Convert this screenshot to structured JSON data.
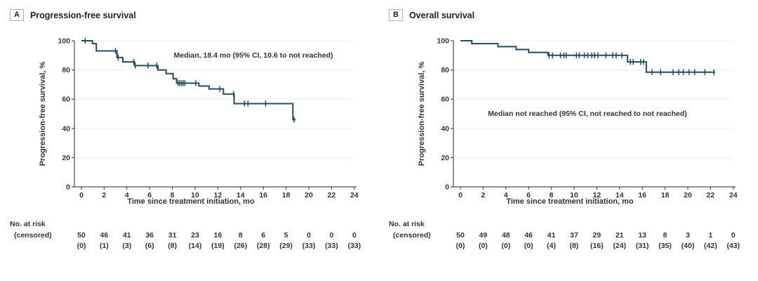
{
  "figure": {
    "background": "#ffffff",
    "curve_color": "#254B5E",
    "axis_color": "#4d4d4d",
    "grid_color": "#ebebeb",
    "panels": [
      {
        "label": "A",
        "title": "Progression-free survival",
        "chart_data": {
          "type": "line",
          "subtype": "kaplan_meier_step",
          "title": "Progression-free survival",
          "annotation": "Median, 18.4 mo (95% CI, 10.6 to not reached)",
          "xlabel": "Time since treatment initiation, mo",
          "ylabel": "Progression-free survival, %",
          "xlim": [
            0,
            24
          ],
          "ylim": [
            0,
            100
          ],
          "x_ticks": [
            0,
            2,
            4,
            6,
            8,
            10,
            12,
            14,
            16,
            18,
            20,
            22,
            24
          ],
          "y_ticks": [
            0,
            20,
            40,
            60,
            80,
            100
          ],
          "grid": "horizontal",
          "legend_position": "none",
          "steps": [
            [
              0,
              100
            ],
            [
              0.97,
              98
            ],
            [
              1.31,
              93
            ],
            [
              3.13,
              88.5
            ],
            [
              3.64,
              85.5
            ],
            [
              4.67,
              83
            ],
            [
              6.73,
              80
            ],
            [
              7.45,
              77.5
            ],
            [
              8.07,
              74
            ],
            [
              8.37,
              71
            ],
            [
              10.33,
              69
            ],
            [
              11.23,
              67
            ],
            [
              12.49,
              63.5
            ],
            [
              13.43,
              57
            ],
            [
              18.6,
              46
            ]
          ],
          "curve_end": 18.85,
          "censor_marks": [
            [
              0.33,
              100
            ],
            [
              3.0,
              93
            ],
            [
              3.23,
              88.5
            ],
            [
              4.6,
              85.5
            ],
            [
              4.73,
              83
            ],
            [
              5.86,
              83
            ],
            [
              6.62,
              83
            ],
            [
              8.5,
              71
            ],
            [
              8.65,
              71
            ],
            [
              8.8,
              71
            ],
            [
              8.95,
              71
            ],
            [
              9.1,
              71
            ],
            [
              10.06,
              71
            ],
            [
              12.16,
              67
            ],
            [
              13.38,
              63.5
            ],
            [
              14.34,
              57
            ],
            [
              14.65,
              57
            ],
            [
              16.2,
              57
            ],
            [
              18.7,
              46
            ]
          ],
          "at_risk_label": "No. at risk",
          "censored_label": "(censored)",
          "at_risk": [
            50,
            46,
            41,
            36,
            31,
            23,
            16,
            8,
            6,
            5,
            0,
            0,
            0
          ],
          "censored": [
            0,
            1,
            3,
            6,
            8,
            14,
            19,
            26,
            28,
            29,
            33,
            33,
            33
          ]
        }
      },
      {
        "label": "B",
        "title": "Overall survival",
        "chart_data": {
          "type": "line",
          "subtype": "kaplan_meier_step",
          "title": "Overall survival",
          "annotation": "Median not reached (95% CI, not reached to not reached)",
          "xlabel": "Time since treatment initiation, mo",
          "ylabel": "Progression-free survival, %",
          "xlim": [
            0,
            24
          ],
          "ylim": [
            0,
            100
          ],
          "x_ticks": [
            0,
            2,
            4,
            6,
            8,
            10,
            12,
            14,
            16,
            18,
            20,
            22,
            24
          ],
          "y_ticks": [
            0,
            20,
            40,
            60,
            80,
            100
          ],
          "grid": "horizontal",
          "legend_position": "none",
          "steps": [
            [
              0,
              100
            ],
            [
              1.0,
              98
            ],
            [
              3.3,
              96
            ],
            [
              4.9,
              94
            ],
            [
              6.0,
              92
            ],
            [
              7.7,
              90
            ],
            [
              14.7,
              85.5
            ],
            [
              16.35,
              78.5
            ]
          ],
          "curve_end": 22.4,
          "censor_marks": [
            [
              7.8,
              90
            ],
            [
              8.1,
              90
            ],
            [
              8.8,
              90
            ],
            [
              9.1,
              90
            ],
            [
              9.3,
              90
            ],
            [
              10.2,
              90
            ],
            [
              10.45,
              90
            ],
            [
              10.9,
              90
            ],
            [
              11.2,
              90
            ],
            [
              11.55,
              90
            ],
            [
              11.8,
              90
            ],
            [
              12.1,
              90
            ],
            [
              12.8,
              90
            ],
            [
              13.4,
              90
            ],
            [
              13.7,
              90
            ],
            [
              14.2,
              90
            ],
            [
              14.95,
              85.5
            ],
            [
              15.2,
              85.5
            ],
            [
              15.85,
              85.5
            ],
            [
              16.1,
              85.5
            ],
            [
              16.85,
              78.5
            ],
            [
              17.6,
              78.5
            ],
            [
              18.7,
              78.5
            ],
            [
              19.2,
              78.5
            ],
            [
              19.6,
              78.5
            ],
            [
              20.1,
              78.5
            ],
            [
              20.6,
              78.5
            ],
            [
              21.5,
              78.5
            ],
            [
              22.3,
              78.5
            ]
          ],
          "at_risk_label": "No. at risk",
          "censored_label": "(censored)",
          "at_risk": [
            50,
            49,
            48,
            46,
            41,
            37,
            29,
            21,
            13,
            8,
            3,
            1,
            0
          ],
          "censored": [
            0,
            0,
            0,
            0,
            4,
            8,
            16,
            24,
            31,
            35,
            40,
            42,
            43
          ]
        }
      }
    ]
  }
}
